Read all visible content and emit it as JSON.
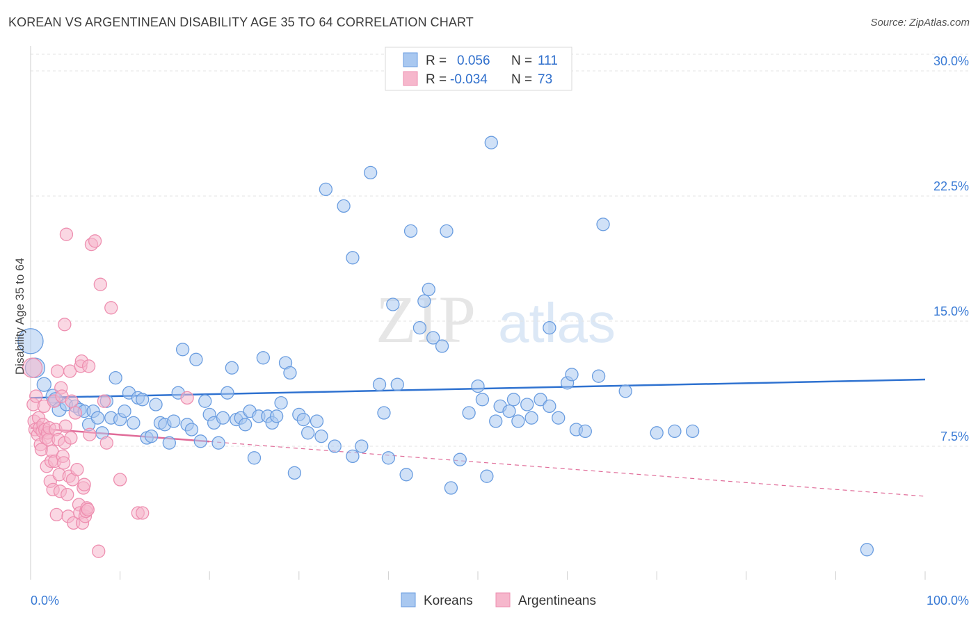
{
  "title": "KOREAN VS ARGENTINEAN DISABILITY AGE 35 TO 64 CORRELATION CHART",
  "source": "Source: ZipAtlas.com",
  "watermark": {
    "zip": "ZIP",
    "atlas": "atlas"
  },
  "colors": {
    "koreans_fill": "#a9c8f0",
    "koreans_stroke": "#6a9de0",
    "koreans_line": "#2f72d0",
    "argentineans_fill": "#f6b7cc",
    "argentineans_stroke": "#ee8fb0",
    "argentineans_line": "#e06b98",
    "grid": "#e3e3e3",
    "axis_text": "#3a7bd5"
  },
  "legend_top": {
    "rows": [
      {
        "r_label": "R =",
        "r_value": "0.056",
        "n_label": "N =",
        "n_value": "111"
      },
      {
        "r_label": "R =",
        "r_value": "-0.034",
        "n_label": "N =",
        "n_value": "73"
      }
    ]
  },
  "legend_bottom": {
    "items": [
      {
        "label": "Koreans"
      },
      {
        "label": "Argentineans"
      }
    ]
  },
  "chart_data": {
    "type": "scatter",
    "title": "KOREAN VS ARGENTINEAN DISABILITY AGE 35 TO 64 CORRELATION CHART",
    "xlabel": "",
    "ylabel": "Disability Age 35 to 64",
    "xlim": [
      0,
      100
    ],
    "ylim": [
      0,
      31
    ],
    "x_tick_labels": [
      "0.0%",
      "100.0%"
    ],
    "y_ticks": [
      7.5,
      15.0,
      22.5,
      30.0
    ],
    "y_tick_labels": [
      "7.5%",
      "15.0%",
      "22.5%",
      "30.0%"
    ],
    "grid": true,
    "series": [
      {
        "name": "Koreans",
        "R": 0.056,
        "N": 111,
        "trend": {
          "x": [
            0,
            100
          ],
          "y": [
            10.4,
            11.5
          ]
        },
        "points": [
          [
            0,
            13.8,
            18
          ],
          [
            0.5,
            12.2,
            14
          ],
          [
            1.5,
            11.2,
            10
          ],
          [
            2.5,
            10.5,
            10
          ],
          [
            2.8,
            10.3,
            10
          ],
          [
            3.2,
            9.7,
            10
          ],
          [
            4.0,
            10.0,
            9
          ],
          [
            5.0,
            9.9,
            9
          ],
          [
            5.5,
            9.7,
            9
          ],
          [
            6.0,
            9.6,
            9
          ],
          [
            6.5,
            8.8,
            9
          ],
          [
            7.0,
            9.6,
            9
          ],
          [
            7.5,
            9.2,
            9
          ],
          [
            8.0,
            8.3,
            9
          ],
          [
            8.5,
            10.2,
            9
          ],
          [
            9.0,
            9.2,
            9
          ],
          [
            9.5,
            11.6,
            9
          ],
          [
            10.0,
            9.1,
            9
          ],
          [
            10.5,
            9.6,
            9
          ],
          [
            11.0,
            10.7,
            9
          ],
          [
            11.5,
            8.9,
            9
          ],
          [
            12.0,
            10.4,
            9
          ],
          [
            12.5,
            10.3,
            9
          ],
          [
            13.0,
            8.0,
            9
          ],
          [
            13.5,
            8.1,
            9
          ],
          [
            14.0,
            10.0,
            9
          ],
          [
            14.5,
            8.9,
            9
          ],
          [
            15.0,
            8.8,
            9
          ],
          [
            15.5,
            7.7,
            9
          ],
          [
            16.0,
            9.0,
            9
          ],
          [
            16.5,
            10.7,
            9
          ],
          [
            17.0,
            13.3,
            9
          ],
          [
            17.5,
            8.8,
            9
          ],
          [
            18.0,
            8.5,
            9
          ],
          [
            18.5,
            12.7,
            9
          ],
          [
            19.0,
            7.8,
            9
          ],
          [
            19.5,
            10.2,
            9
          ],
          [
            20.0,
            9.4,
            9
          ],
          [
            20.5,
            8.9,
            9
          ],
          [
            21.0,
            7.7,
            9
          ],
          [
            21.5,
            9.2,
            9
          ],
          [
            22.0,
            10.7,
            9
          ],
          [
            22.5,
            12.2,
            9
          ],
          [
            23.0,
            9.1,
            9
          ],
          [
            23.5,
            9.2,
            9
          ],
          [
            24.0,
            8.8,
            9
          ],
          [
            24.5,
            9.6,
            9
          ],
          [
            25.0,
            6.8,
            9
          ],
          [
            25.5,
            9.3,
            9
          ],
          [
            26.0,
            12.8,
            9
          ],
          [
            26.5,
            9.3,
            9
          ],
          [
            27.0,
            8.9,
            9
          ],
          [
            27.5,
            9.3,
            9
          ],
          [
            28.0,
            10.1,
            9
          ],
          [
            28.5,
            12.5,
            9
          ],
          [
            29.0,
            11.9,
            9
          ],
          [
            29.5,
            5.9,
            9
          ],
          [
            30.0,
            9.4,
            9
          ],
          [
            30.5,
            9.1,
            9
          ],
          [
            31.0,
            8.3,
            9
          ],
          [
            32.0,
            9.0,
            9
          ],
          [
            32.5,
            8.1,
            9
          ],
          [
            33.0,
            22.9,
            9
          ],
          [
            34.0,
            7.5,
            9
          ],
          [
            35.0,
            21.9,
            9
          ],
          [
            36.0,
            18.8,
            9
          ],
          [
            37.0,
            7.5,
            9
          ],
          [
            38.0,
            23.9,
            9
          ],
          [
            39.0,
            11.2,
            9
          ],
          [
            39.5,
            9.5,
            9
          ],
          [
            40.0,
            6.8,
            9
          ],
          [
            40.5,
            16.0,
            9
          ],
          [
            41.0,
            11.2,
            9
          ],
          [
            42.0,
            5.8,
            9
          ],
          [
            42.5,
            20.4,
            9
          ],
          [
            43.5,
            14.6,
            9
          ],
          [
            44.0,
            16.2,
            9
          ],
          [
            44.5,
            16.9,
            9
          ],
          [
            45.0,
            14.0,
            9
          ],
          [
            46.0,
            13.5,
            9
          ],
          [
            46.5,
            20.4,
            9
          ],
          [
            47.0,
            5.0,
            9
          ],
          [
            48.0,
            6.7,
            9
          ],
          [
            49.0,
            9.5,
            9
          ],
          [
            50.0,
            11.1,
            9
          ],
          [
            50.5,
            10.3,
            9
          ],
          [
            51.0,
            5.7,
            9
          ],
          [
            51.5,
            25.7,
            9
          ],
          [
            52.0,
            9.0,
            9
          ],
          [
            52.5,
            9.9,
            9
          ],
          [
            53.5,
            9.6,
            9
          ],
          [
            54.0,
            10.3,
            9
          ],
          [
            54.5,
            9.0,
            9
          ],
          [
            55.5,
            10.0,
            9
          ],
          [
            56.0,
            9.2,
            9
          ],
          [
            57.0,
            10.3,
            9
          ],
          [
            58.0,
            9.9,
            9
          ],
          [
            59.0,
            9.2,
            9
          ],
          [
            60.0,
            11.3,
            9
          ],
          [
            60.5,
            11.8,
            9
          ],
          [
            61.0,
            8.5,
            9
          ],
          [
            62.0,
            8.4,
            9
          ],
          [
            63.5,
            11.7,
            9
          ],
          [
            64.0,
            20.8,
            9
          ],
          [
            66.5,
            10.8,
            9
          ],
          [
            70.0,
            8.3,
            9
          ],
          [
            72.0,
            8.4,
            9
          ],
          [
            74.0,
            8.4,
            9
          ],
          [
            93.5,
            1.3,
            9
          ],
          [
            58.0,
            14.6,
            9
          ],
          [
            36.0,
            6.9,
            9
          ]
        ]
      },
      {
        "name": "Argentineans",
        "R": -0.034,
        "N": 73,
        "trend": {
          "x": [
            0,
            100
          ],
          "y": [
            8.6,
            4.5
          ]
        },
        "trend_solid_until_x": 20,
        "points": [
          [
            0.2,
            12.2,
            14
          ],
          [
            0.3,
            10.0,
            9
          ],
          [
            0.4,
            9.0,
            9
          ],
          [
            0.5,
            8.5,
            9
          ],
          [
            0.6,
            10.5,
            9
          ],
          [
            0.8,
            8.2,
            9
          ],
          [
            0.9,
            9.2,
            9
          ],
          [
            1.0,
            8.6,
            9
          ],
          [
            1.1,
            7.6,
            9
          ],
          [
            1.2,
            7.3,
            9
          ],
          [
            1.3,
            8.4,
            9
          ],
          [
            1.4,
            8.8,
            9
          ],
          [
            1.5,
            9.9,
            9
          ],
          [
            1.6,
            8.5,
            9
          ],
          [
            1.7,
            8.0,
            9
          ],
          [
            1.8,
            6.3,
            9
          ],
          [
            1.9,
            8.3,
            9
          ],
          [
            2.0,
            7.9,
            9
          ],
          [
            2.1,
            8.6,
            9
          ],
          [
            2.2,
            5.4,
            9
          ],
          [
            2.3,
            6.6,
            9
          ],
          [
            2.4,
            7.2,
            9
          ],
          [
            2.5,
            4.9,
            9
          ],
          [
            2.6,
            10.2,
            9
          ],
          [
            2.7,
            6.6,
            9
          ],
          [
            2.8,
            8.5,
            9
          ],
          [
            2.9,
            3.4,
            9
          ],
          [
            3.0,
            12.0,
            9
          ],
          [
            3.1,
            7.9,
            9
          ],
          [
            3.2,
            5.8,
            9
          ],
          [
            3.3,
            4.8,
            9
          ],
          [
            3.4,
            11.0,
            9
          ],
          [
            3.5,
            10.5,
            9
          ],
          [
            3.6,
            6.9,
            9
          ],
          [
            3.7,
            6.5,
            9
          ],
          [
            3.8,
            7.7,
            9
          ],
          [
            3.9,
            8.7,
            9
          ],
          [
            4.0,
            20.2,
            9
          ],
          [
            4.1,
            4.6,
            9
          ],
          [
            4.2,
            3.3,
            9
          ],
          [
            4.3,
            5.7,
            9
          ],
          [
            4.4,
            12.0,
            9
          ],
          [
            4.5,
            8.0,
            9
          ],
          [
            4.6,
            10.2,
            9
          ],
          [
            4.7,
            5.5,
            9
          ],
          [
            4.8,
            2.9,
            9
          ],
          [
            5.0,
            9.5,
            9
          ],
          [
            5.2,
            6.1,
            9
          ],
          [
            5.4,
            4.0,
            9
          ],
          [
            5.5,
            3.5,
            9
          ],
          [
            5.6,
            12.3,
            9
          ],
          [
            5.7,
            12.6,
            9
          ],
          [
            5.8,
            2.9,
            9
          ],
          [
            5.9,
            5.0,
            9
          ],
          [
            6.0,
            5.2,
            9
          ],
          [
            6.1,
            3.3,
            9
          ],
          [
            6.2,
            3.6,
            9
          ],
          [
            6.3,
            3.8,
            9
          ],
          [
            6.4,
            3.7,
            9
          ],
          [
            6.5,
            12.3,
            9
          ],
          [
            6.6,
            8.2,
            9
          ],
          [
            6.8,
            19.6,
            9
          ],
          [
            7.2,
            19.8,
            9
          ],
          [
            7.6,
            1.2,
            9
          ],
          [
            7.8,
            17.2,
            9
          ],
          [
            8.2,
            10.2,
            9
          ],
          [
            8.5,
            7.7,
            9
          ],
          [
            9.0,
            15.8,
            9
          ],
          [
            10.0,
            5.5,
            9
          ],
          [
            12.0,
            3.5,
            9
          ],
          [
            12.5,
            3.5,
            9
          ],
          [
            17.5,
            10.4,
            9
          ],
          [
            3.8,
            14.8,
            9
          ]
        ]
      }
    ]
  }
}
